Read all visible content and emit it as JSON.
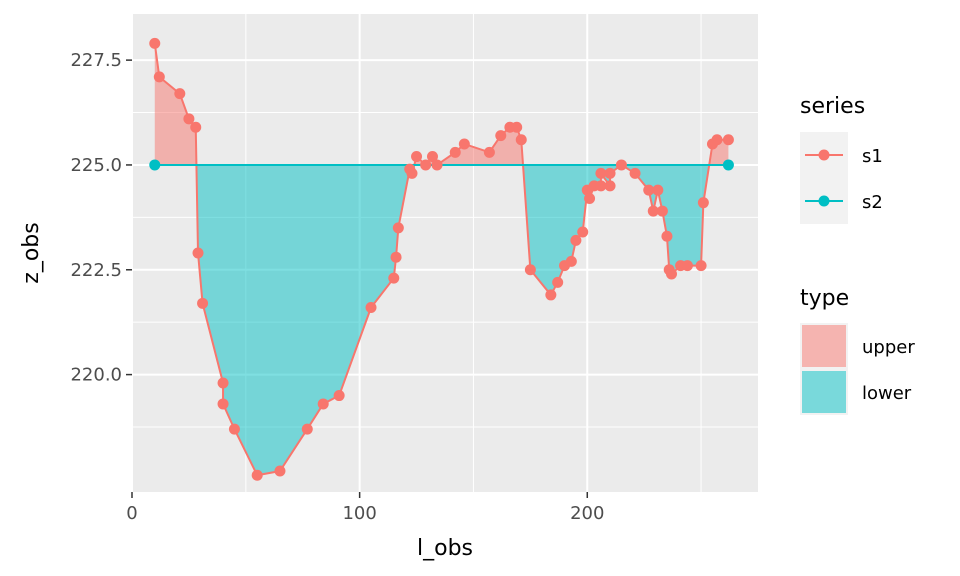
{
  "chart_data": {
    "type": "line",
    "xlabel": "l_obs",
    "ylabel": "z_obs",
    "xlim": [
      0,
      275
    ],
    "ylim": [
      217.2,
      228.6
    ],
    "x_ticks": [
      0,
      100,
      200
    ],
    "x_tick_labels": [
      "0",
      "100",
      "200"
    ],
    "y_ticks": [
      220.0,
      222.5,
      225.0,
      227.5
    ],
    "y_tick_labels": [
      "220.0",
      "222.5",
      "225.0",
      "227.5"
    ],
    "grid": true,
    "reference_level": 225.0,
    "series": [
      {
        "name": "s1",
        "color": "#F8766D",
        "x": [
          10,
          12,
          21,
          25,
          28,
          29,
          31,
          40,
          40,
          45,
          55,
          65,
          77,
          84,
          91,
          105,
          115,
          116,
          117,
          122,
          123,
          125,
          129,
          132,
          134,
          142,
          146,
          157,
          162,
          166,
          169,
          171,
          175,
          184,
          187,
          190,
          193,
          195,
          198,
          200,
          201,
          203,
          206,
          206,
          210,
          210,
          215,
          221,
          227,
          229,
          231,
          233,
          235,
          236,
          237,
          241,
          244,
          250,
          251,
          255,
          257,
          262
        ],
        "y": [
          227.9,
          227.1,
          226.7,
          226.1,
          225.9,
          222.9,
          221.7,
          219.8,
          219.3,
          218.7,
          217.6,
          217.7,
          218.7,
          219.3,
          219.5,
          221.6,
          222.3,
          222.8,
          223.5,
          224.9,
          224.8,
          225.2,
          225.0,
          225.2,
          225.0,
          225.3,
          225.5,
          225.3,
          225.7,
          225.9,
          225.9,
          225.6,
          222.5,
          221.9,
          222.2,
          222.6,
          222.7,
          223.2,
          223.4,
          224.4,
          224.2,
          224.5,
          224.5,
          224.8,
          224.5,
          224.8,
          225.0,
          224.8,
          224.4,
          223.9,
          224.4,
          223.9,
          223.3,
          222.5,
          222.4,
          222.6,
          222.6,
          222.6,
          224.1,
          225.5,
          225.6,
          225.6
        ]
      },
      {
        "name": "s2",
        "color": "#00BFC4",
        "x": [
          10,
          262
        ],
        "y": [
          225.0,
          225.0
        ]
      }
    ],
    "fill_areas": [
      {
        "name": "upper",
        "color": "#F8766D"
      },
      {
        "name": "lower",
        "color": "#00BFC4"
      }
    ],
    "legends": [
      {
        "title": "series",
        "placement": "right",
        "entries": [
          "s1",
          "s2"
        ]
      },
      {
        "title": "type",
        "placement": "right",
        "entries": [
          "upper",
          "lower"
        ]
      }
    ]
  }
}
